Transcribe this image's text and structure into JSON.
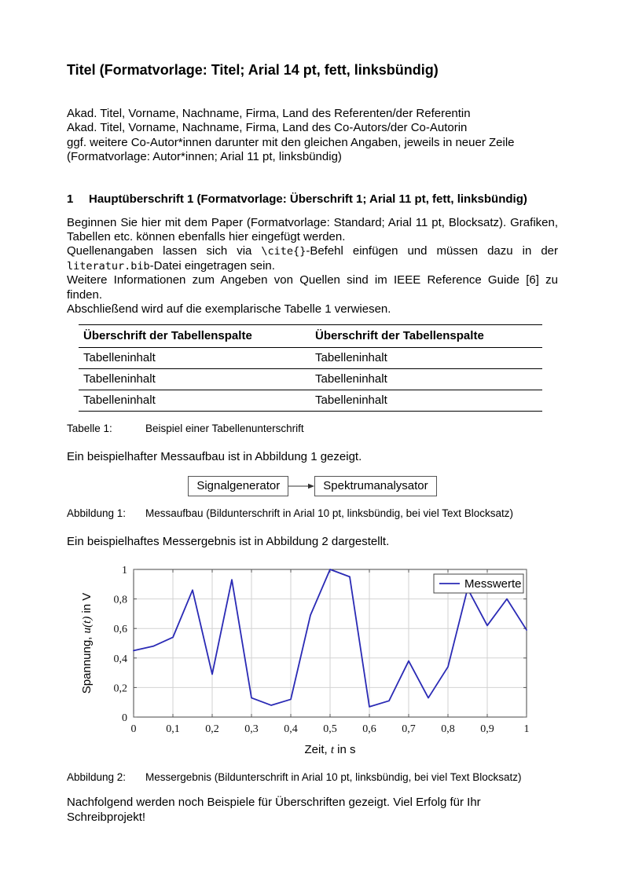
{
  "title": "Titel (Formatvorlage: Titel; Arial 14 pt, fett, linksbündig)",
  "authors": [
    "Akad. Titel, Vorname, Nachname, Firma, Land des Referenten/der Referentin",
    "Akad. Titel, Vorname, Nachname, Firma, Land des Co-Autors/der Co-Autorin",
    "ggf. weitere Co-Autor*innen darunter mit den gleichen Angaben, jeweils in neuer Zeile",
    "(Formatvorlage: Autor*innen; Arial 11 pt, linksbündig)"
  ],
  "section": {
    "number": "1",
    "title": "Hauptüberschrift 1 (Formatvorlage: Überschrift 1; Arial 11 pt, fett, linksbündig)"
  },
  "paragraph": {
    "line1": "Beginnen Sie hier mit dem Paper (Formatvorlage: Standard; Arial 11 pt, Blocksatz). Grafiken, Tabellen etc. können ebenfalls hier eingefügt werden.",
    "line2_pre": "Quellenangaben lassen sich via ",
    "line2_mono1": "\\cite{}",
    "line2_mid": "-Befehl einfügen und müssen dazu in der ",
    "line2_mono2": "literatur.bib",
    "line2_post": "-Datei eingetragen sein.",
    "line3": "Weitere Informationen zum Angeben von Quellen sind im IEEE Reference Guide [6] zu finden.",
    "line4": "Abschließend wird auf die exemplarische Tabelle 1 verwiesen."
  },
  "table": {
    "headers": [
      "Überschrift der Tabellenspalte",
      "Überschrift der Tabellenspalte"
    ],
    "rows": [
      [
        "Tabelleninhalt",
        "Tabelleninhalt"
      ],
      [
        "Tabelleninhalt",
        "Tabelleninhalt"
      ],
      [
        "Tabelleninhalt",
        "Tabelleninhalt"
      ]
    ],
    "caption_label": "Tabelle 1:",
    "caption_text": "Beispiel einer Tabellenunterschrift"
  },
  "fig1_intro": "Ein beispielhafter Messaufbau ist in Abbildung 1 gezeigt.",
  "diagram": {
    "box1": "Signalgenerator",
    "box2": "Spektrumanalysator"
  },
  "fig1_caption": {
    "label": "Abbildung 1:",
    "text": "Messaufbau (Bildunterschrift in Arial 10 pt, linksbündig, bei viel Text Blocksatz)"
  },
  "fig2_intro": "Ein beispielhaftes Messergebnis ist in Abbildung 2 dargestellt.",
  "chart_data": {
    "type": "line",
    "title": "",
    "xlabel_pre": "Zeit, ",
    "xlabel_math": "t",
    "xlabel_post": " in s",
    "ylabel_pre": "Spannung, ",
    "ylabel_math": "u(t)",
    "ylabel_post": " in V",
    "xlim": [
      0,
      1
    ],
    "ylim": [
      0,
      1
    ],
    "x_ticks": [
      "0",
      "0,1",
      "0,2",
      "0,3",
      "0,4",
      "0,5",
      "0,6",
      "0,7",
      "0,8",
      "0,9",
      "1"
    ],
    "y_ticks": [
      "0",
      "0,2",
      "0,4",
      "0,6",
      "0,8",
      "1"
    ],
    "grid": true,
    "legend_position": "top-right",
    "series": [
      {
        "name": "Messwerte",
        "color": "#2a2ab5",
        "x": [
          0,
          0.05,
          0.1,
          0.15,
          0.2,
          0.25,
          0.3,
          0.35,
          0.4,
          0.45,
          0.5,
          0.55,
          0.6,
          0.65,
          0.7,
          0.75,
          0.8,
          0.85,
          0.9,
          0.95,
          1.0
        ],
        "y": [
          0.45,
          0.48,
          0.54,
          0.86,
          0.29,
          0.93,
          0.13,
          0.08,
          0.12,
          0.69,
          1.0,
          0.95,
          0.07,
          0.11,
          0.38,
          0.13,
          0.34,
          0.87,
          0.62,
          0.8,
          0.59
        ]
      }
    ]
  },
  "fig2_caption": {
    "label": "Abbildung 2:",
    "text": "Messergebnis (Bildunterschrift in Arial 10 pt, linksbündig, bei viel Text Blocksatz)"
  },
  "closing": "Nachfolgend werden noch Beispiele für Überschriften gezeigt. Viel Erfolg für Ihr Schreibprojekt!"
}
